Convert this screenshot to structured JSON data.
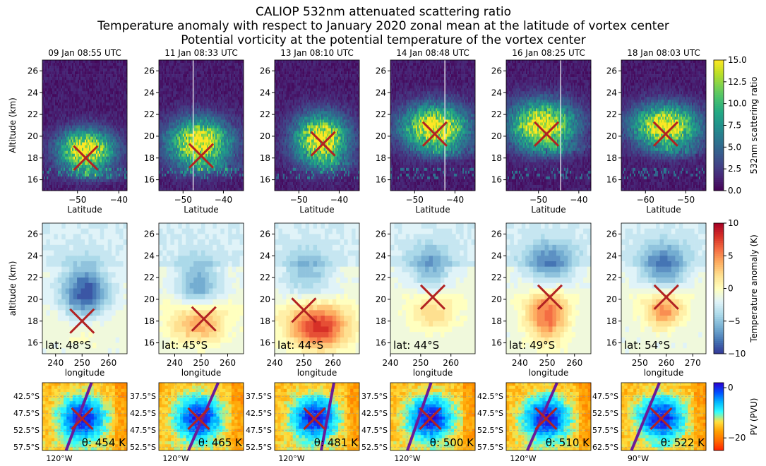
{
  "title_lines": [
    "CALIOP 532nm attenuated scattering ratio",
    "Temperature anomaly with respect to January 2020 zonal mean at the latitude of vortex center",
    "Potential vorticity at the potential temperature of the vortex center"
  ],
  "colors": {
    "marker": "#b22222",
    "orbit_track": "#6a1b9a",
    "viridis": [
      "#440154",
      "#482475",
      "#414487",
      "#355f8d",
      "#2a788e",
      "#21918c",
      "#22a884",
      "#44bf70",
      "#7ad151",
      "#bddf26",
      "#fde725"
    ],
    "rdylbu_r": [
      "#313695",
      "#4575b4",
      "#74add1",
      "#abd9e9",
      "#e0f3f8",
      "#ffffbf",
      "#fee090",
      "#fdae61",
      "#f46d43",
      "#d73027",
      "#a50026"
    ],
    "pv": [
      "#2b00d0",
      "#0050ff",
      "#00b8ff",
      "#30ffff",
      "#ffe040",
      "#ffa000",
      "#ff6a00",
      "#ff2000"
    ]
  },
  "chart_data": [
    {
      "type": "heatmap",
      "description_row": "CALIOP 532nm attenuated scattering ratio",
      "ylabel": "Altitude (km)",
      "xlabel": "Latitude",
      "ylim": [
        15,
        27
      ],
      "yticks": [
        16,
        18,
        20,
        22,
        24,
        26
      ],
      "colorbar": {
        "label": "532nm scattering ratio",
        "range": [
          0,
          15
        ],
        "ticks": [
          "0.0",
          "2.5",
          "5.0",
          "7.5",
          "10.0",
          "12.5",
          "15.0"
        ]
      },
      "panels": [
        {
          "title": "09 Jan 08:55 UTC",
          "xlim": [
            -58.5,
            -38
          ],
          "xticks": [
            -50,
            -40
          ],
          "marker": [
            -48,
            18
          ],
          "plume": {
            "center": [
              -48,
              18.7
            ],
            "rx_deg": 6.5,
            "ry_km": 1.8
          },
          "scan_line_lat": null
        },
        {
          "title": "11 Jan 08:33 UTC",
          "xlim": [
            -56,
            -35
          ],
          "xticks": [
            -50,
            -40
          ],
          "marker": [
            -45.5,
            18.2
          ],
          "plume": {
            "center": [
              -46,
              19.4
            ],
            "rx_deg": 7.5,
            "ry_km": 2.1
          },
          "scan_line_lat": -47.5
        },
        {
          "title": "13 Jan 08:10 UTC",
          "xlim": [
            -56,
            -35
          ],
          "xticks": [
            -50,
            -40
          ],
          "marker": [
            -44,
            19.3
          ],
          "plume": {
            "center": [
              -44.5,
              19.7
            ],
            "rx_deg": 6.5,
            "ry_km": 2.2
          },
          "scan_line_lat": null
        },
        {
          "title": "14 Jan 08:48 UTC",
          "xlim": [
            -56,
            -35
          ],
          "xticks": [
            -50,
            -40
          ],
          "marker": [
            -45,
            20.2
          ],
          "plume": {
            "center": [
              -45,
              20.8
            ],
            "rx_deg": 8.0,
            "ry_km": 2.0
          },
          "scan_line_lat": -42.5
        },
        {
          "title": "16 Jan 08:25 UTC",
          "xlim": [
            -58,
            -37
          ],
          "xticks": [
            -50,
            -40
          ],
          "marker": [
            -48,
            20.2
          ],
          "plume": {
            "center": [
              -49,
              21.0
            ],
            "rx_deg": 8.0,
            "ry_km": 2.1
          },
          "scan_line_lat": -44.5
        },
        {
          "title": "18 Jan 08:03 UTC",
          "xlim": [
            -66,
            -45
          ],
          "xticks": [
            -60,
            -50
          ],
          "marker": [
            -55,
            20.2
          ],
          "plume": {
            "center": [
              -55,
              20.9
            ],
            "rx_deg": 8.0,
            "ry_km": 1.9
          },
          "scan_line_lat": null
        }
      ]
    },
    {
      "type": "heatmap",
      "description_row": "Temperature anomaly with respect to January 2020 zonal mean at the latitude of vortex center",
      "ylabel": "altitude (km)",
      "xlabel": "longitude",
      "ylim": [
        15,
        27
      ],
      "yticks": [
        16,
        18,
        20,
        22,
        24,
        26
      ],
      "colorbar": {
        "label": "Temperature anomaly (K)",
        "range": [
          -10,
          10
        ],
        "ticks": [
          "10",
          "5",
          "0",
          "−5",
          "−10"
        ]
      },
      "panels": [
        {
          "lat_label": "lat: 48°S",
          "xlim": [
            235,
            267
          ],
          "xticks": [
            240,
            250,
            260
          ],
          "marker": [
            250,
            18
          ],
          "cold_core": {
            "center": [
              251,
              20.5
            ],
            "rx": 9,
            "ry": 2.6,
            "amp": -8
          },
          "warm_core": {
            "center": [
              251,
              16.8
            ],
            "rx": 8,
            "ry": 1.2,
            "amp": 1.5
          }
        },
        {
          "lat_label": "lat: 45°S",
          "xlim": [
            234,
            266
          ],
          "xticks": [
            240,
            250,
            260
          ],
          "marker": [
            251,
            18.2
          ],
          "cold_core": {
            "center": [
              249,
              21.5
            ],
            "rx": 8,
            "ry": 2.2,
            "amp": -5
          },
          "warm_core": {
            "center": [
              249,
              17.5
            ],
            "rx": 10,
            "ry": 1.6,
            "amp": 5
          }
        },
        {
          "lat_label": "lat: 44°S",
          "xlim": [
            240,
            269
          ],
          "xticks": [
            240,
            250,
            260
          ],
          "marker": [
            250,
            19
          ],
          "cold_core": {
            "center": [
              251,
              22.5
            ],
            "rx": 8,
            "ry": 2.0,
            "amp": -4
          },
          "warm_core": {
            "center": [
              255,
              17.3
            ],
            "rx": 10,
            "ry": 1.8,
            "amp": 9
          }
        },
        {
          "lat_label": "lat: 44°S",
          "xlim": [
            240,
            268
          ],
          "xticks": [
            240,
            250,
            260
          ],
          "marker": [
            254,
            20.2
          ],
          "cold_core": {
            "center": [
              253,
              23.0
            ],
            "rx": 7,
            "ry": 2.0,
            "amp": -4.5
          },
          "warm_core": {
            "center": [
              254,
              18.3
            ],
            "rx": 7,
            "ry": 1.4,
            "amp": 3
          }
        },
        {
          "lat_label": "lat: 49°S",
          "xlim": [
            235,
            266
          ],
          "xticks": [
            240,
            250,
            260
          ],
          "marker": [
            251,
            20.2
          ],
          "cold_core": {
            "center": [
              251,
              23.3
            ],
            "rx": 9,
            "ry": 2.0,
            "amp": -5.5
          },
          "warm_core": {
            "center": [
              250,
              18.3
            ],
            "rx": 7,
            "ry": 2.2,
            "amp": 7
          }
        },
        {
          "lat_label": "lat: 54°S",
          "xlim": [
            243,
            275
          ],
          "xticks": [
            250,
            260,
            270
          ],
          "marker": [
            260,
            20.2
          ],
          "cold_core": {
            "center": [
              259,
              23.0
            ],
            "rx": 9,
            "ry": 2.1,
            "amp": -6
          },
          "warm_core": {
            "center": [
              259,
              18.8
            ],
            "rx": 7,
            "ry": 1.4,
            "amp": 6
          }
        }
      ]
    },
    {
      "type": "heatmap",
      "description_row": "Potential vorticity at the potential temperature of the vortex center",
      "colorbar": {
        "label": "PV (PVU)",
        "range": [
          -25,
          2
        ],
        "ticks": [
          "0",
          "−20"
        ]
      },
      "panels": [
        {
          "theta_label": "θ: 454 K",
          "yticks": [
            "42.5°S",
            "47.5°S",
            "52.5°S",
            "57.5°S"
          ],
          "xtick_label": "120°W",
          "track": [
            [
              0.28,
              1.0
            ],
            [
              0.58,
              0.0
            ]
          ]
        },
        {
          "theta_label": "θ: 465 K",
          "yticks": [
            "37.5°S",
            "42.5°S",
            "47.5°S",
            "52.5°S"
          ],
          "xtick_label": "120°W",
          "track": [
            [
              0.35,
              1.0
            ],
            [
              0.7,
              0.0
            ]
          ]
        },
        {
          "theta_label": "θ: 481 K",
          "yticks": [
            "37.5°S",
            "42.5°S",
            "47.5°S",
            "52.5°S"
          ],
          "xtick_label": "120°W",
          "track": [
            [
              0.55,
              1.0
            ],
            [
              0.7,
              0.0
            ]
          ]
        },
        {
          "theta_label": "θ: 500 K",
          "yticks": [
            "37.5°S",
            "42.5°S",
            "47.5°S",
            "52.5°S"
          ],
          "xtick_label": "120°W",
          "track": [
            [
              0.2,
              1.0
            ],
            [
              0.48,
              0.0
            ]
          ]
        },
        {
          "theta_label": "θ: 510 K",
          "yticks": [
            "42.5°S",
            "47.5°S",
            "52.5°S",
            "57.5°S"
          ],
          "xtick_label": "120°W",
          "track": [
            [
              0.25,
              1.0
            ],
            [
              0.6,
              0.0
            ]
          ]
        },
        {
          "theta_label": "θ: 522 K",
          "yticks": [
            "47.5°S",
            "52.5°S",
            "57.5°S",
            "62.5°S"
          ],
          "xtick_label": "90°W",
          "track": [
            [
              0.12,
              1.0
            ],
            [
              0.45,
              0.0
            ]
          ]
        }
      ]
    }
  ]
}
